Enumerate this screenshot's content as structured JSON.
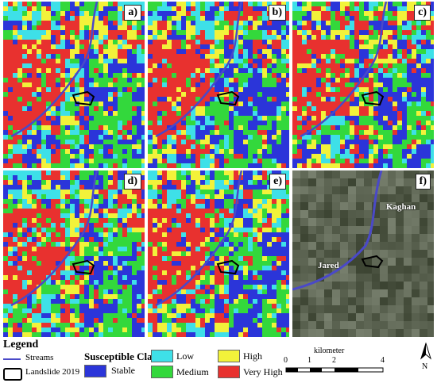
{
  "panels": [
    {
      "label": "a)",
      "type": "susceptibility"
    },
    {
      "label": "b)",
      "type": "susceptibility"
    },
    {
      "label": "c)",
      "type": "susceptibility"
    },
    {
      "label": "d)",
      "type": "susceptibility"
    },
    {
      "label": "e)",
      "type": "susceptibility"
    },
    {
      "label": "f)",
      "type": "satellite",
      "places": [
        "Kaghan",
        "Jared"
      ]
    }
  ],
  "legend": {
    "title": "Legend",
    "streams_label": "Streams",
    "landslide_label": "Landslide 2019",
    "class_title": "Susceptible Class",
    "classes": [
      {
        "label": "Stable",
        "color": "#2b35d9"
      },
      {
        "label": "Low",
        "color": "#3ee0e8"
      },
      {
        "label": "Medium",
        "color": "#33d83c"
      },
      {
        "label": "High",
        "color": "#f2f23a"
      },
      {
        "label": "Very High",
        "color": "#e8312f"
      }
    ],
    "scale": {
      "title": "kilometer",
      "ticks": [
        "0",
        "1",
        "2",
        "4"
      ]
    },
    "north": "N"
  },
  "colors": {
    "stream": "#4a49c8",
    "landslide": "#000000"
  }
}
